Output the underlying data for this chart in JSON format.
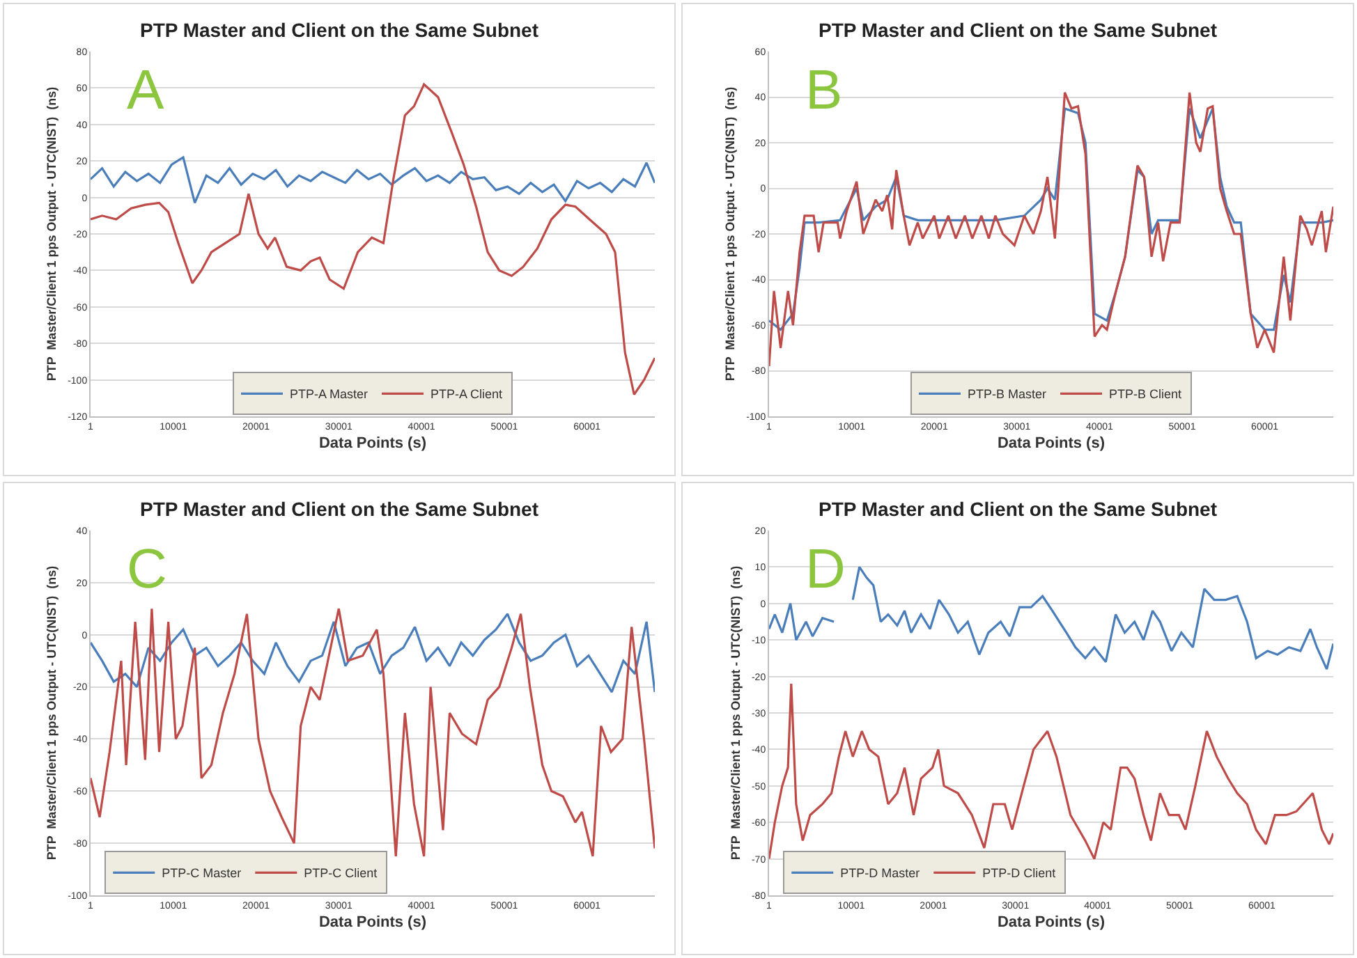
{
  "chart_data": [
    {
      "type": "line",
      "title": "PTP Master and Client on the Same Subnet",
      "xlabel": "Data Points (s)",
      "ylabel": "PTP  Master/Client 1 pps Output - UTC(NIST)  (ns)",
      "annotations": [
        "A"
      ],
      "xlim": [
        1,
        68200
      ],
      "xticks": [
        1,
        10001,
        20001,
        30001,
        40001,
        50001,
        60001
      ],
      "ylim": [
        -120,
        80
      ],
      "yticks": [
        -120,
        -100,
        -80,
        -60,
        -40,
        -20,
        0,
        20,
        40,
        60,
        80
      ],
      "grid": "y",
      "legend": "bottom",
      "line_style": "solid",
      "series": [
        {
          "name": "PTP-A Master",
          "color": "#4a7ebb",
          "x": [
            1,
            1400,
            2800,
            4200,
            5600,
            7000,
            8400,
            9800,
            11200,
            12600,
            14000,
            15400,
            16800,
            18200,
            19600,
            21000,
            22400,
            23800,
            25200,
            26600,
            28000,
            29400,
            30800,
            32200,
            33600,
            35000,
            36400,
            37800,
            39200,
            40600,
            42000,
            43400,
            44800,
            46200,
            47600,
            49000,
            50400,
            51800,
            53200,
            54600,
            56000,
            57400,
            58800,
            60200,
            61600,
            63000,
            64400,
            65800,
            67200,
            68200
          ],
          "values": [
            10,
            16,
            6,
            14,
            9,
            13,
            8,
            18,
            22,
            -3,
            12,
            8,
            16,
            7,
            13,
            10,
            15,
            6,
            12,
            9,
            14,
            11,
            8,
            15,
            10,
            13,
            7,
            12,
            16,
            9,
            12,
            8,
            14,
            10,
            11,
            4,
            6,
            2,
            8,
            3,
            7,
            -2,
            9,
            5,
            8,
            3,
            10,
            6,
            19,
            8
          ]
        },
        {
          "name": "PTP-A Client",
          "color": "#be4b48",
          "x": [
            1,
            1400,
            3100,
            4900,
            6600,
            8300,
            9400,
            10600,
            12300,
            13400,
            14600,
            16300,
            18000,
            19100,
            20300,
            21400,
            22300,
            23700,
            25400,
            26600,
            27700,
            28900,
            30600,
            32300,
            34000,
            35400,
            36600,
            38000,
            39100,
            40300,
            42000,
            43700,
            45100,
            46600,
            48000,
            49400,
            50900,
            52300,
            54000,
            55700,
            57400,
            58600,
            60300,
            62300,
            63400,
            64600,
            65700,
            66900,
            68200
          ],
          "values": [
            -12,
            -10,
            -12,
            -6,
            -4,
            -3,
            -8,
            -25,
            -47,
            -40,
            -30,
            -25,
            -20,
            2,
            -20,
            -28,
            -22,
            -38,
            -40,
            -35,
            -33,
            -45,
            -50,
            -30,
            -22,
            -25,
            10,
            45,
            50,
            62,
            55,
            35,
            18,
            -5,
            -30,
            -40,
            -43,
            -38,
            -28,
            -12,
            -4,
            -5,
            -12,
            -20,
            -30,
            -85,
            -108,
            -100,
            -88
          ]
        }
      ]
    },
    {
      "type": "line",
      "title": "PTP Master and Client on the Same Subnet",
      "xlabel": "Data Points (s)",
      "ylabel": "PTP  Master/Client 1 pps Output - UTC(NIST)  (ns)",
      "annotations": [
        "B"
      ],
      "xlim": [
        1,
        68300
      ],
      "xticks": [
        1,
        10001,
        20001,
        30001,
        40001,
        50001,
        60001
      ],
      "ylim": [
        -100,
        60
      ],
      "yticks": [
        -100,
        -80,
        -60,
        -40,
        -20,
        0,
        20,
        40,
        60
      ],
      "grid": "y",
      "legend": "bottom",
      "line_style": "solid",
      "series": [
        {
          "name": "PTP-B Master",
          "color": "#4a7ebb",
          "x": [
            1,
            1400,
            2900,
            3700,
            4300,
            6000,
            8600,
            10600,
            11400,
            12900,
            14300,
            15400,
            16300,
            18000,
            20000,
            23700,
            27400,
            30900,
            32900,
            33700,
            34600,
            35800,
            37400,
            38300,
            39400,
            40900,
            42000,
            43100,
            44600,
            45400,
            46300,
            47100,
            49700,
            50900,
            52200,
            53700,
            54600,
            55400,
            56300,
            57100,
            58300,
            60000,
            61100,
            62300,
            63100,
            64300,
            65700,
            66900,
            68300
          ],
          "values": [
            -58,
            -62,
            -55,
            -35,
            -15,
            -15,
            -14,
            0,
            -14,
            -8,
            -5,
            5,
            -12,
            -14,
            -14,
            -14,
            -14,
            -12,
            -5,
            0,
            -5,
            35,
            33,
            20,
            -55,
            -58,
            -45,
            -30,
            8,
            5,
            -20,
            -14,
            -14,
            35,
            22,
            35,
            5,
            -8,
            -15,
            -15,
            -55,
            -62,
            -62,
            -38,
            -50,
            -15,
            -15,
            -15,
            -14
          ]
        },
        {
          "name": "PTP-B Client",
          "color": "#be4b48",
          "x": [
            1,
            600,
            1400,
            2300,
            2900,
            3700,
            4300,
            5400,
            6000,
            6600,
            8300,
            8600,
            9400,
            10600,
            11400,
            12900,
            13700,
            14300,
            14900,
            15400,
            16300,
            17000,
            18000,
            18600,
            20000,
            20600,
            21700,
            22600,
            23700,
            24600,
            25700,
            26600,
            27400,
            28300,
            29700,
            30900,
            32000,
            32900,
            33700,
            34600,
            35800,
            36600,
            37400,
            38300,
            39400,
            40300,
            40900,
            42000,
            43100,
            44600,
            45400,
            46300,
            47100,
            47700,
            48600,
            49700,
            50900,
            51700,
            52200,
            53100,
            53700,
            54600,
            55400,
            56300,
            57100,
            58300,
            59100,
            60000,
            61100,
            62300,
            63100,
            64300,
            65100,
            65700,
            66900,
            67400,
            68300
          ],
          "values": [
            -78,
            -45,
            -70,
            -45,
            -60,
            -28,
            -12,
            -12,
            -28,
            -15,
            -15,
            -22,
            -10,
            3,
            -20,
            -5,
            -10,
            -3,
            -18,
            8,
            -12,
            -25,
            -15,
            -22,
            -12,
            -22,
            -12,
            -22,
            -12,
            -22,
            -12,
            -22,
            -12,
            -20,
            -25,
            -12,
            -20,
            -10,
            5,
            -22,
            42,
            35,
            36,
            15,
            -65,
            -60,
            -62,
            -45,
            -30,
            10,
            5,
            -30,
            -15,
            -32,
            -15,
            -15,
            42,
            20,
            16,
            35,
            36,
            0,
            -10,
            -20,
            -20,
            -55,
            -70,
            -62,
            -72,
            -30,
            -58,
            -12,
            -18,
            -25,
            -10,
            -28,
            -8
          ]
        }
      ]
    },
    {
      "type": "line",
      "title": "PTP Master and Client on the Same Subnet",
      "xlabel": "Data Points (s)",
      "ylabel": "PTP  Master/Client 1 pps Output - UTC(NIST)  (ns)",
      "annotations": [
        "C"
      ],
      "xlim": [
        1,
        68200
      ],
      "xticks": [
        1,
        10001,
        20001,
        30001,
        40001,
        50001,
        60001
      ],
      "ylim": [
        -100,
        40
      ],
      "yticks": [
        -100,
        -80,
        -60,
        -40,
        -20,
        0,
        20,
        40
      ],
      "grid": "y",
      "legend": "bottom left",
      "line_style": "solid",
      "series": [
        {
          "name": "PTP-C Master",
          "color": "#4a7ebb",
          "x": [
            1,
            1400,
            2800,
            4200,
            5600,
            7000,
            8400,
            9800,
            11200,
            12600,
            14000,
            15400,
            16800,
            18200,
            19600,
            21000,
            22400,
            23800,
            25200,
            26600,
            28000,
            29400,
            30800,
            32200,
            33600,
            35000,
            36400,
            37800,
            39200,
            40600,
            42000,
            43400,
            44800,
            46200,
            47600,
            49000,
            50400,
            51800,
            53200,
            54600,
            56000,
            57400,
            58800,
            60200,
            61600,
            63000,
            64400,
            65800,
            67200,
            68200
          ],
          "values": [
            -3,
            -10,
            -18,
            -15,
            -20,
            -5,
            -10,
            -3,
            2,
            -8,
            -5,
            -12,
            -8,
            -3,
            -10,
            -15,
            -3,
            -12,
            -18,
            -10,
            -8,
            5,
            -12,
            -5,
            -3,
            -15,
            -8,
            -5,
            3,
            -10,
            -5,
            -12,
            -3,
            -8,
            -2,
            2,
            8,
            -3,
            -10,
            -8,
            -3,
            0,
            -12,
            -8,
            -15,
            -22,
            -10,
            -15,
            5,
            -22
          ]
        },
        {
          "name": "PTP-C Client",
          "color": "#be4b48",
          "x": [
            1,
            1100,
            2300,
            3700,
            4300,
            5400,
            6600,
            7400,
            8300,
            9400,
            10300,
            11100,
            12600,
            13400,
            14600,
            16000,
            17400,
            18900,
            20300,
            21700,
            23100,
            24600,
            25400,
            26600,
            27700,
            30000,
            31100,
            32900,
            34600,
            35400,
            36900,
            38000,
            39100,
            40300,
            41100,
            42600,
            43400,
            44900,
            46600,
            48000,
            49400,
            50900,
            52000,
            53100,
            54600,
            55700,
            57100,
            58600,
            59400,
            60700,
            61700,
            62900,
            64300,
            65400,
            66900,
            68200
          ],
          "values": [
            -55,
            -70,
            -45,
            -10,
            -50,
            5,
            -48,
            10,
            -45,
            5,
            -40,
            -35,
            -5,
            -55,
            -50,
            -30,
            -15,
            8,
            -40,
            -60,
            -70,
            -80,
            -35,
            -20,
            -25,
            10,
            -10,
            -8,
            2,
            -15,
            -85,
            -30,
            -65,
            -85,
            -20,
            -75,
            -30,
            -38,
            -42,
            -25,
            -20,
            -5,
            8,
            -20,
            -50,
            -60,
            -62,
            -72,
            -68,
            -85,
            -35,
            -45,
            -40,
            3,
            -40,
            -82
          ]
        }
      ]
    },
    {
      "type": "line",
      "title": "PTP Master and Client on the Same Subnet",
      "xlabel": "Data Points (s)",
      "ylabel": "PTP  Master/Client 1 pps Output - UTC(NIST)  (ns)",
      "annotations": [
        "D"
      ],
      "xlim": [
        1,
        68700
      ],
      "xticks": [
        1,
        10001,
        20001,
        30001,
        40001,
        50001,
        60001
      ],
      "ylim": [
        -80,
        20
      ],
      "yticks": [
        -80,
        -70,
        -60,
        -50,
        -40,
        -30,
        -20,
        -10,
        0,
        10,
        20
      ],
      "grid": "y",
      "legend": "bottom left",
      "line_style": "solid",
      "series": [
        {
          "name": "PTP-D Master",
          "color": "#4a7ebb",
          "x": [
            1,
            700,
            1600,
            2600,
            3300,
            4500,
            5300,
            6500,
            7900,
            8700,
            10200,
            11000,
            11900,
            12700,
            13600,
            14500,
            15600,
            16500,
            17300,
            18500,
            19600,
            20700,
            21900,
            23000,
            24200,
            25600,
            26700,
            28200,
            29300,
            30500,
            31900,
            33300,
            34500,
            36200,
            37300,
            38500,
            39600,
            41000,
            42200,
            43300,
            44500,
            45600,
            46700,
            47600,
            49000,
            50200,
            51600,
            53000,
            54200,
            55600,
            57000,
            58200,
            59300,
            60700,
            61900,
            63300,
            64700,
            65900,
            66700,
            67900,
            68700
          ],
          "values": [
            -7,
            -3,
            -8,
            0,
            -10,
            -5,
            -9,
            -4,
            -5,
            null,
            1,
            10,
            7,
            5,
            -5,
            -3,
            -6,
            -2,
            -8,
            -3,
            -7,
            1,
            -3,
            -8,
            -5,
            -14,
            -8,
            -5,
            -9,
            -1,
            -1,
            2,
            -2,
            -8,
            -12,
            -15,
            -12,
            -16,
            -3,
            -8,
            -5,
            -10,
            -2,
            -5,
            -13,
            -8,
            -12,
            4,
            1,
            1,
            2,
            -5,
            -15,
            -13,
            -14,
            -12,
            -13,
            -7,
            -12,
            -18,
            -11
          ]
        },
        {
          "name": "PTP-D Client",
          "color": "#be4b48",
          "x": [
            1,
            700,
            1600,
            2300,
            2700,
            3300,
            4100,
            5000,
            6500,
            7600,
            8500,
            9300,
            10200,
            11300,
            12200,
            13300,
            14500,
            15600,
            16500,
            17600,
            18500,
            19900,
            20600,
            21300,
            23000,
            24700,
            26200,
            27300,
            28700,
            29600,
            31000,
            32200,
            33900,
            35000,
            36700,
            38500,
            39600,
            40700,
            41600,
            42800,
            43600,
            44500,
            45600,
            46500,
            47600,
            48700,
            49900,
            50700,
            51900,
            53300,
            54500,
            55900,
            57000,
            58200,
            59300,
            60500,
            61600,
            63000,
            64200,
            66200,
            67300,
            68200,
            68700
          ],
          "values": [
            -70,
            -60,
            -50,
            -45,
            -22,
            -55,
            -65,
            -58,
            -55,
            -52,
            -42,
            -35,
            -42,
            -35,
            -40,
            -42,
            -55,
            -52,
            -45,
            -58,
            -48,
            -45,
            -40,
            -50,
            -52,
            -58,
            -67,
            -55,
            -55,
            -62,
            -50,
            -40,
            -35,
            -42,
            -58,
            -65,
            -70,
            -60,
            -62,
            -45,
            -45,
            -48,
            -58,
            -65,
            -52,
            -58,
            -58,
            -62,
            -50,
            -35,
            -42,
            -48,
            -52,
            -55,
            -62,
            -66,
            -58,
            -58,
            -57,
            -52,
            -62,
            -66,
            -63
          ]
        }
      ]
    }
  ]
}
